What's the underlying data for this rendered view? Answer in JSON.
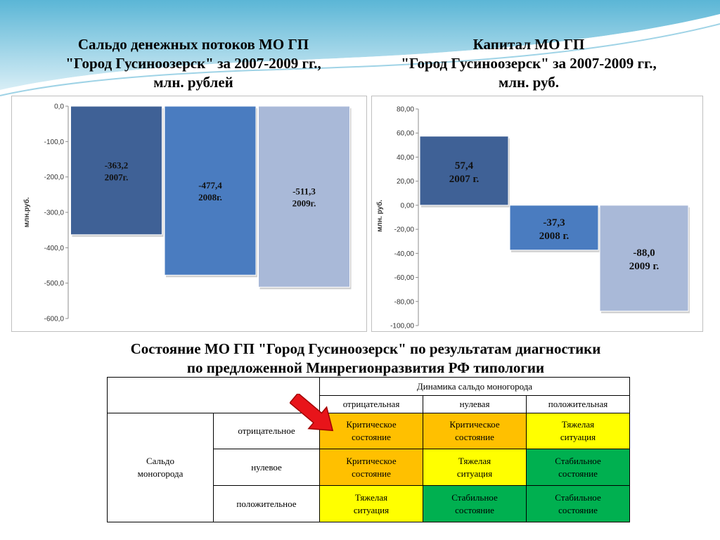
{
  "left_title": [
    "Сальдо денежных потоков МО ГП",
    "\"Город Гусиноозерск\" за 2007-2009 гг.,",
    "млн. рублей"
  ],
  "right_title": [
    "Капитал МО ГП",
    "\"Город Гусиноозерск\" за 2007-2009 гг.,",
    "млн. руб."
  ],
  "middle_title": [
    "Состояние МО ГП \"Город Гусиноозерск\" по результатам диагностики",
    "по предложенной Минрегионразвития РФ типологии"
  ],
  "chart_data": [
    {
      "type": "bar",
      "title": "Сальдо денежных потоков МО ГП \"Город Гусиноозерск\" за 2007-2009 гг., млн. рублей",
      "ylabel": "млн.руб.",
      "ylim": [
        -600,
        0
      ],
      "yticks": [
        "0,0",
        "-100,0",
        "-200,0",
        "-300,0",
        "-400,0",
        "-500,0",
        "-600,0"
      ],
      "categories": [
        "2007г.",
        "2008г.",
        "2009г."
      ],
      "values": [
        -363.2,
        -477.4,
        -511.3
      ],
      "value_labels": [
        "-363,2",
        "-477,4",
        "-511,3"
      ],
      "colors": [
        "#3f6196",
        "#4a7cc0",
        "#a9b9d8"
      ]
    },
    {
      "type": "bar",
      "title": "Капитал МО ГП \"Город Гусиноозерск\" за 2007-2009 гг., млн. руб.",
      "ylabel": "млн. руб.",
      "ylim": [
        -100,
        80
      ],
      "yticks": [
        "80,00",
        "60,00",
        "40,00",
        "20,00",
        "0,00",
        "-20,00",
        "-40,00",
        "-60,00",
        "-80,00",
        "-100,00"
      ],
      "categories": [
        "2007 г.",
        "2008 г.",
        "2009 г."
      ],
      "values": [
        57.4,
        -37.3,
        -88.0
      ],
      "value_labels": [
        "57,4",
        "-37,3",
        "-88,0"
      ],
      "colors": [
        "#3f6196",
        "#4a7cc0",
        "#a9b9d8"
      ]
    }
  ],
  "matrix": {
    "col_group": "Динамика сальдо моногорода",
    "col_headers": [
      "отрицательная",
      "нулевая",
      "положительная"
    ],
    "row_group": "Сальдо моногорода",
    "rows": [
      {
        "label": "отрицательное",
        "cells": [
          "Критическое состояние",
          "Критическое состояние",
          "Тяжелая ситуация"
        ]
      },
      {
        "label": "нулевое",
        "cells": [
          "Критическое состояние",
          "Тяжелая ситуация",
          "Стабильное состояние"
        ]
      },
      {
        "label": "положительное",
        "cells": [
          "Тяжелая ситуация",
          "Стабильное состояние",
          "Стабильное состояние"
        ]
      }
    ],
    "colors": {
      "critical": "#ffc000",
      "heavy": "#ffff00",
      "stable": "#00b050"
    },
    "pointer": "red-arrow-icon"
  }
}
